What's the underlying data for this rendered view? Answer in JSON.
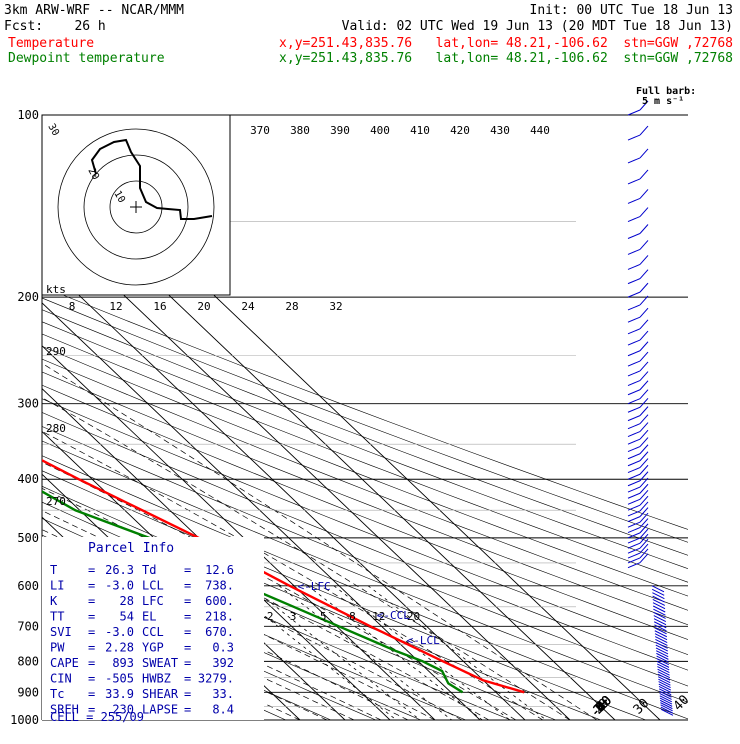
{
  "header": {
    "model": "3km ARW-WRF -- NCAR/MMM",
    "init": "Init: 00 UTC Tue 18 Jun 13",
    "fcst": "Fcst:    26 h",
    "valid": "Valid: 02 UTC Wed 19 Jun 13 (20 MDT Tue 18 Jun 13)",
    "temp_line": {
      "label": "Temperature",
      "info": "x,y=251.43,835.76   lat,lon= 48.21,-106.62  stn=GGW ,72768",
      "color": "#ff0000"
    },
    "dew_line": {
      "label": "Dewpoint temperature",
      "info": "x,y=251.43,835.76   lat,lon= 48.21,-106.62  stn=GGW ,72768",
      "color": "#008000"
    }
  },
  "chart_data": {
    "type": "line",
    "pressure_unit": "hPa",
    "pressure_levels": [
      100,
      200,
      300,
      400,
      500,
      600,
      700,
      800,
      900,
      1000
    ],
    "isotherm_labels": [
      "-80",
      "-70",
      "-60",
      "-50",
      "-40",
      "-30",
      "-20",
      "-10",
      "0",
      "10",
      "20",
      "30",
      "40"
    ],
    "theta_labels": [
      "370",
      "380",
      "390",
      "400",
      "410",
      "420",
      "430",
      "440"
    ],
    "theta_low_labels": [
      "290",
      "280",
      "270"
    ],
    "mixing_ratio_labels": [
      "2",
      "3",
      "5",
      "8",
      "12",
      "20"
    ],
    "series": [
      {
        "name": "Temperature",
        "color": "#ff0000",
        "unit": "C",
        "pressure": [
          900,
          860,
          800,
          700,
          600,
          500,
          400,
          300,
          250,
          210,
          200,
          180,
          150,
          130,
          100
        ],
        "values": [
          26.3,
          20,
          15.5,
          7.5,
          -1,
          -10,
          -23,
          -38,
          -47,
          -55,
          -56,
          -55,
          -50,
          -53,
          -62
        ]
      },
      {
        "name": "Dewpoint temperature",
        "color": "#008000",
        "unit": "C",
        "pressure": [
          900,
          870,
          830,
          800,
          770,
          700,
          650,
          600,
          550,
          500,
          450,
          400,
          350,
          300,
          260,
          250,
          200,
          150,
          100
        ],
        "values": [
          12.6,
          11.5,
          13,
          11,
          7.5,
          0.5,
          -5,
          -11,
          -15,
          -21,
          -31,
          -36,
          -44,
          -52,
          -61,
          -61,
          -65,
          -70,
          -78
        ]
      }
    ],
    "levels_annotations": [
      {
        "label": "<-EL",
        "pressure": 218
      },
      {
        "label": "<-LFC",
        "pressure": 600
      },
      {
        "label": "<-CCL",
        "pressure": 670
      },
      {
        "label": "<-LCL",
        "pressure": 738
      }
    ],
    "barb_legend": {
      "title": "Full barb:",
      "value": "5 m s⁻¹"
    },
    "hodograph": {
      "speed_unit": "kts",
      "ring_labels": [
        "30",
        "20",
        "10"
      ],
      "rings_kts": [
        10,
        20,
        30
      ]
    },
    "wind_axis_labels": [
      "8",
      "12",
      "16",
      "20",
      "24",
      "28",
      "32"
    ]
  },
  "parcel_info": {
    "title": "Parcel Info",
    "color": "#0000aa",
    "rows": [
      {
        "k1": "T",
        "v1": "26.3",
        "k2": "Td",
        "v2": "12.6"
      },
      {
        "k1": "LI",
        "v1": "-3.0",
        "k2": "LCL",
        "v2": "738."
      },
      {
        "k1": "K",
        "v1": "28",
        "k2": "LFC",
        "v2": "600."
      },
      {
        "k1": "TT",
        "v1": "54",
        "k2": "EL",
        "v2": "218."
      },
      {
        "k1": "SVI",
        "v1": "-3.0",
        "k2": "CCL",
        "v2": "670."
      },
      {
        "k1": "PW",
        "v1": "2.28",
        "k2": "YGP",
        "v2": "0.3"
      },
      {
        "k1": "CAPE",
        "v1": "893",
        "k2": "SWEAT",
        "v2": "392"
      },
      {
        "k1": "CIN",
        "v1": "-505",
        "k2": "HWBZ",
        "v2": "3279."
      },
      {
        "k1": "Tc",
        "v1": "33.9",
        "k2": "SHEAR",
        "v2": "33."
      },
      {
        "k1": "SREH",
        "v1": "230",
        "k2": "LAPSE",
        "v2": "8.4"
      }
    ],
    "cell": "CELL = 255/09"
  }
}
